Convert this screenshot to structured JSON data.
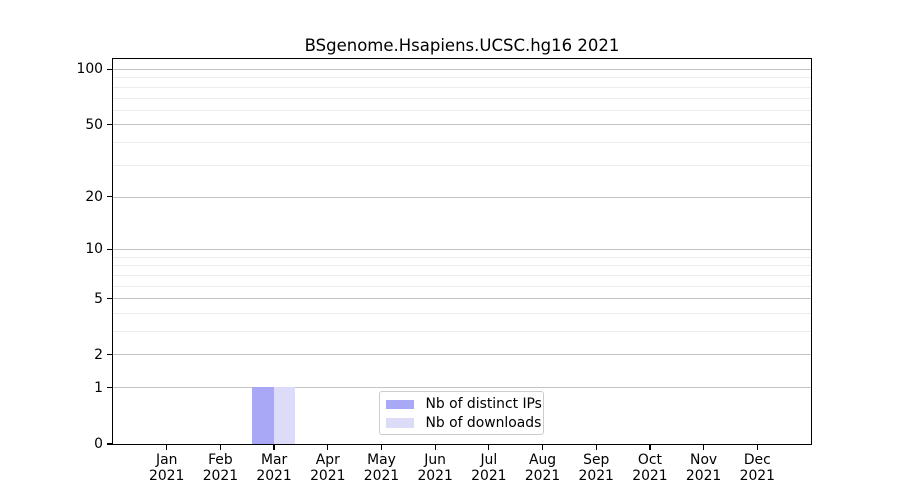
{
  "chart_data": {
    "type": "bar",
    "title": "BSgenome.Hsapiens.UCSC.hg16 2021",
    "categories": [
      {
        "month": "Jan",
        "year": "2021"
      },
      {
        "month": "Feb",
        "year": "2021"
      },
      {
        "month": "Mar",
        "year": "2021"
      },
      {
        "month": "Apr",
        "year": "2021"
      },
      {
        "month": "May",
        "year": "2021"
      },
      {
        "month": "Jun",
        "year": "2021"
      },
      {
        "month": "Jul",
        "year": "2021"
      },
      {
        "month": "Aug",
        "year": "2021"
      },
      {
        "month": "Sep",
        "year": "2021"
      },
      {
        "month": "Oct",
        "year": "2021"
      },
      {
        "month": "Nov",
        "year": "2021"
      },
      {
        "month": "Dec",
        "year": "2021"
      }
    ],
    "series": [
      {
        "name": "Nb of distinct IPs",
        "color": "#a8a8f6",
        "values": [
          0,
          0,
          1,
          0,
          0,
          0,
          0,
          0,
          0,
          0,
          0,
          0
        ]
      },
      {
        "name": "Nb of downloads",
        "color": "#dcdcf9",
        "values": [
          0,
          0,
          1,
          0,
          0,
          0,
          0,
          0,
          0,
          0,
          0,
          0
        ]
      }
    ],
    "yscale": "log1p",
    "ylim": [
      0,
      113
    ],
    "yticks": [
      0,
      1,
      2,
      5,
      10,
      20,
      50,
      100
    ],
    "minor_yticks": [
      3,
      4,
      6,
      7,
      8,
      9,
      30,
      40,
      60,
      70,
      80,
      90
    ],
    "grid": "horizontal",
    "legend_position": "lower center inside"
  }
}
